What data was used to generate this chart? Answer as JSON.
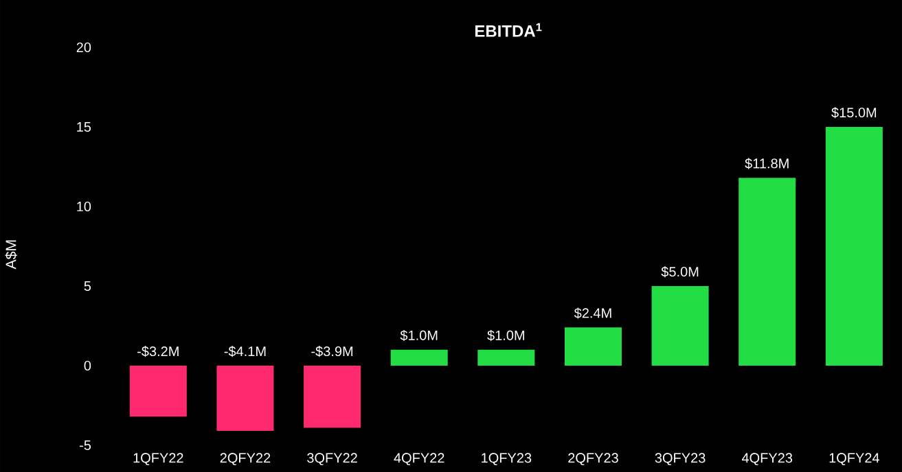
{
  "chart_data": {
    "type": "bar",
    "title": "EBITDA$^{1}$",
    "ylabel": "A$M",
    "categories": [
      "1QFY22",
      "2QFY22",
      "3QFY22",
      "4QFY22",
      "1QFY23",
      "2QFY23",
      "3QFY23",
      "4QFY23",
      "1QFY24"
    ],
    "values": [
      -3.2,
      -4.1,
      -3.9,
      1.0,
      1.0,
      2.4,
      5.0,
      11.8,
      15.0
    ],
    "colors": [
      "#ff2a6d",
      "#ff2a6d",
      "#ff2a6d",
      "#22dd44",
      "#22dd44",
      "#22dd44",
      "#22dd44",
      "#22dd44",
      "#22dd44"
    ],
    "value_labels": [
      "-$3.2M",
      "-$4.1M",
      "-$3.9M",
      "$1.0M",
      "$1.0M",
      "$2.4M",
      "$5.0M",
      "$11.8M",
      "$15.0M"
    ],
    "ylim": [
      -5,
      20
    ],
    "yticks": [
      -5,
      0,
      5,
      10,
      15,
      20
    ],
    "grid": false
  }
}
